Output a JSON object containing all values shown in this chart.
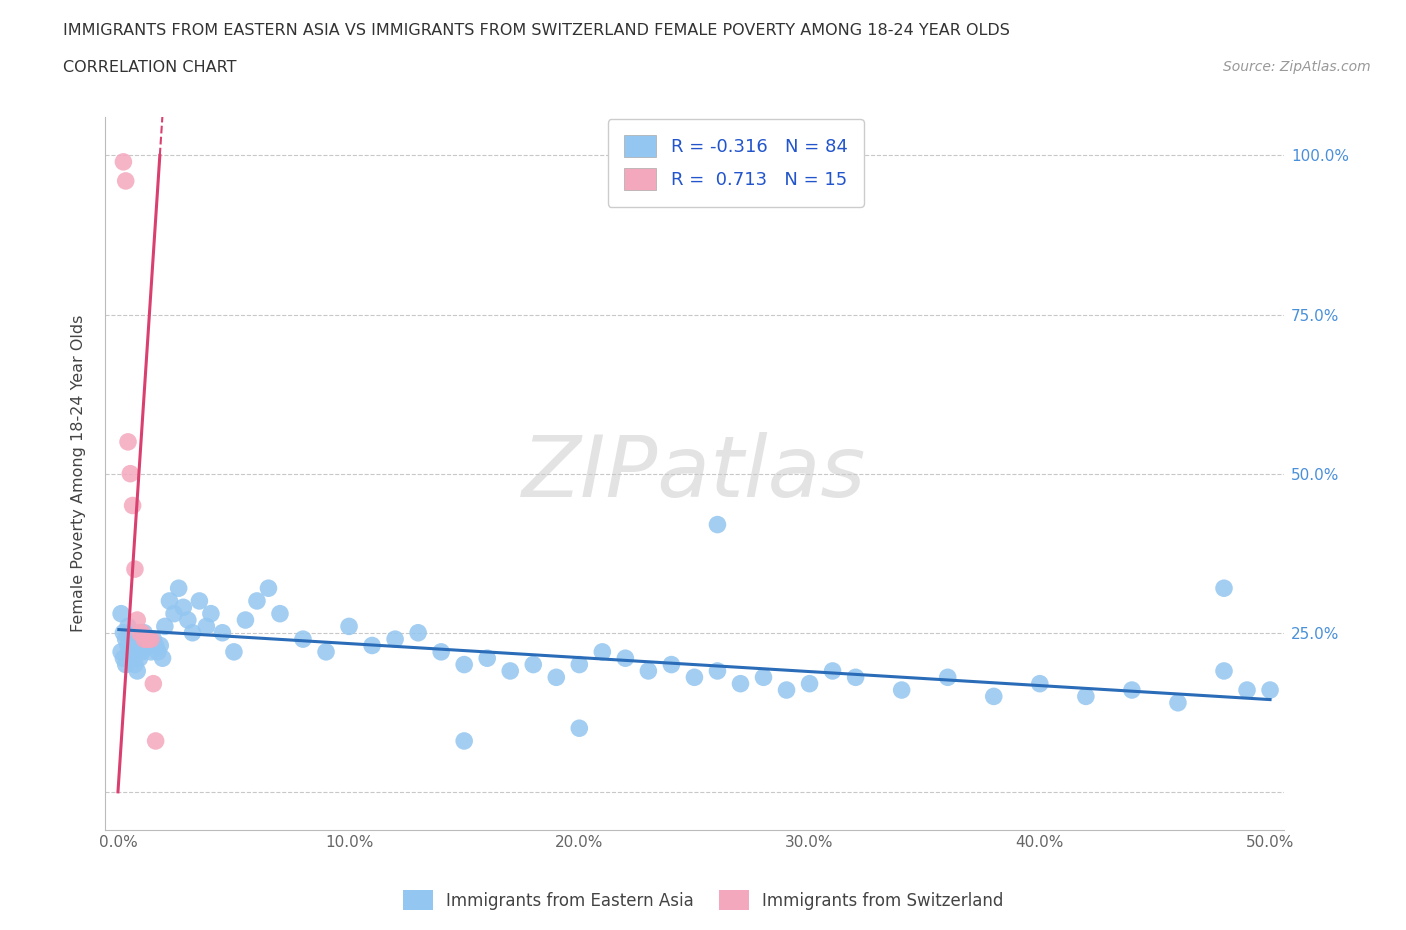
{
  "title_line1": "IMMIGRANTS FROM EASTERN ASIA VS IMMIGRANTS FROM SWITZERLAND FEMALE POVERTY AMONG 18-24 YEAR OLDS",
  "title_line2": "CORRELATION CHART",
  "source_text": "Source: ZipAtlas.com",
  "ylabel": "Female Poverty Among 18-24 Year Olds",
  "xlim": [
    -0.006,
    0.506
  ],
  "ylim": [
    -0.06,
    1.06
  ],
  "xtick_vals": [
    0.0,
    0.1,
    0.2,
    0.3,
    0.4,
    0.5
  ],
  "xticklabels": [
    "0.0%",
    "10.0%",
    "20.0%",
    "30.0%",
    "40.0%",
    "50.0%"
  ],
  "ytick_vals": [
    0.0,
    0.25,
    0.5,
    0.75,
    1.0
  ],
  "right_yticklabels": [
    "",
    "25.0%",
    "50.0%",
    "75.0%",
    "100.0%"
  ],
  "blue_color": "#93C6F0",
  "pink_color": "#F4A8BE",
  "blue_line_color": "#2B6CB8",
  "pink_line_color": "#D94070",
  "legend_label1": "Immigrants from Eastern Asia",
  "legend_label2": "Immigrants from Switzerland",
  "watermark": "ZIPatlas",
  "blue_slope": -0.22,
  "blue_intercept": 0.255,
  "pink_slope": 55.0,
  "pink_intercept": 0.02,
  "blue_x": [
    0.001,
    0.001,
    0.002,
    0.002,
    0.003,
    0.003,
    0.004,
    0.004,
    0.005,
    0.005,
    0.006,
    0.006,
    0.007,
    0.007,
    0.008,
    0.008,
    0.009,
    0.009,
    0.01,
    0.01,
    0.011,
    0.012,
    0.013,
    0.014,
    0.015,
    0.016,
    0.017,
    0.018,
    0.019,
    0.02,
    0.022,
    0.024,
    0.026,
    0.028,
    0.03,
    0.032,
    0.035,
    0.038,
    0.04,
    0.045,
    0.05,
    0.055,
    0.06,
    0.065,
    0.07,
    0.08,
    0.09,
    0.1,
    0.11,
    0.12,
    0.13,
    0.14,
    0.15,
    0.16,
    0.17,
    0.18,
    0.19,
    0.2,
    0.21,
    0.22,
    0.23,
    0.24,
    0.25,
    0.26,
    0.27,
    0.28,
    0.29,
    0.3,
    0.31,
    0.32,
    0.34,
    0.36,
    0.38,
    0.4,
    0.42,
    0.44,
    0.46,
    0.48,
    0.49,
    0.5,
    0.26,
    0.2,
    0.15,
    0.48
  ],
  "blue_y": [
    0.28,
    0.22,
    0.25,
    0.21,
    0.24,
    0.2,
    0.26,
    0.23,
    0.25,
    0.22,
    0.24,
    0.21,
    0.23,
    0.2,
    0.22,
    0.19,
    0.23,
    0.21,
    0.24,
    0.22,
    0.25,
    0.24,
    0.23,
    0.22,
    0.24,
    0.23,
    0.22,
    0.23,
    0.21,
    0.26,
    0.3,
    0.28,
    0.32,
    0.29,
    0.27,
    0.25,
    0.3,
    0.26,
    0.28,
    0.25,
    0.22,
    0.27,
    0.3,
    0.32,
    0.28,
    0.24,
    0.22,
    0.26,
    0.23,
    0.24,
    0.25,
    0.22,
    0.2,
    0.21,
    0.19,
    0.2,
    0.18,
    0.2,
    0.22,
    0.21,
    0.19,
    0.2,
    0.18,
    0.19,
    0.17,
    0.18,
    0.16,
    0.17,
    0.19,
    0.18,
    0.16,
    0.18,
    0.15,
    0.17,
    0.15,
    0.16,
    0.14,
    0.19,
    0.16,
    0.16,
    0.42,
    0.1,
    0.08,
    0.32
  ],
  "pink_x": [
    0.002,
    0.003,
    0.004,
    0.005,
    0.006,
    0.007,
    0.008,
    0.009,
    0.01,
    0.011,
    0.012,
    0.013,
    0.014,
    0.015,
    0.016
  ],
  "pink_y": [
    0.99,
    0.96,
    0.55,
    0.5,
    0.45,
    0.35,
    0.27,
    0.25,
    0.25,
    0.24,
    0.24,
    0.24,
    0.24,
    0.17,
    0.08
  ]
}
